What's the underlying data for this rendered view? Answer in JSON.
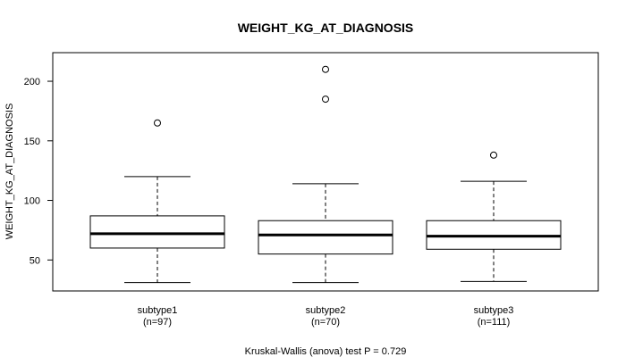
{
  "chart_data": {
    "type": "box",
    "title": "WEIGHT_KG_AT_DIAGNOSIS",
    "ylabel": "WEIGHT_KG_AT_DIAGNOSIS",
    "xlabel": "",
    "ylim": [
      24,
      224
    ],
    "yticks": [
      50,
      100,
      150,
      200
    ],
    "footnote": "Kruskal-Wallis (anova) test P = 0.729",
    "groups": [
      {
        "name": "subtype1",
        "n_label": "(n=97)",
        "min": 31,
        "q1": 60,
        "median": 72,
        "q3": 87,
        "max": 120,
        "outliers": [
          165
        ]
      },
      {
        "name": "subtype2",
        "n_label": "(n=70)",
        "min": 31,
        "q1": 55,
        "median": 71,
        "q3": 83,
        "max": 114,
        "outliers": [
          185,
          210
        ]
      },
      {
        "name": "subtype3",
        "n_label": "(n=111)",
        "min": 32,
        "q1": 59,
        "median": 70,
        "q3": 83,
        "max": 116,
        "outliers": [
          138
        ]
      }
    ]
  }
}
